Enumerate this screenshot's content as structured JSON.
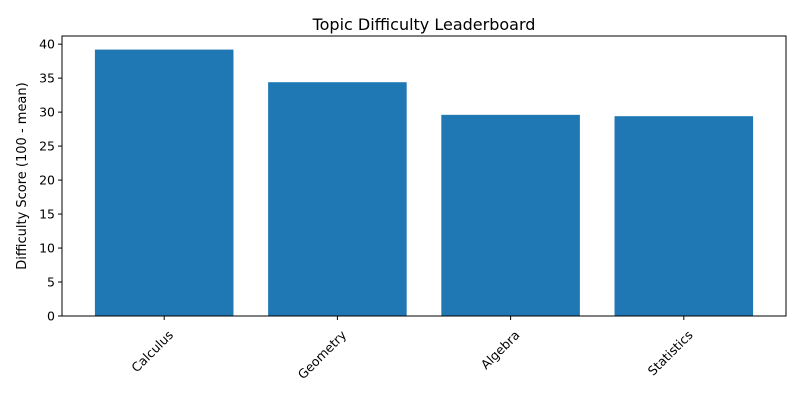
{
  "chart_data": {
    "type": "bar",
    "title": "Topic Difficulty Leaderboard",
    "xlabel": "",
    "ylabel": "Difficulty Score (100 - mean)",
    "categories": [
      "Calculus",
      "Geometry",
      "Algebra",
      "Statistics"
    ],
    "values": [
      39.2,
      34.4,
      29.6,
      29.4
    ],
    "ylim": [
      0,
      41.2
    ],
    "yticks": [
      0,
      5,
      10,
      15,
      20,
      25,
      30,
      35,
      40
    ],
    "bar_color": "#1f77b4",
    "grid": false,
    "legend": "none"
  }
}
